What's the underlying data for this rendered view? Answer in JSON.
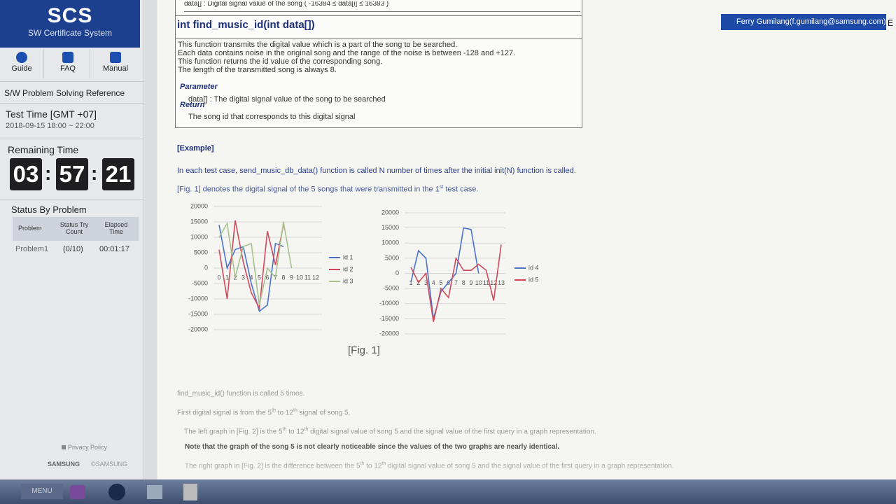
{
  "sidebar": {
    "logo": "SCS",
    "subtitle": "SW Certificate System",
    "nav": [
      "Guide",
      "FAQ",
      "Manual"
    ],
    "reference": "S/W Problem Solving Reference",
    "test_time_label": "Test Time [GMT +07]",
    "test_time": "2018-09-15 18:00 ~ 22:00",
    "remaining_label": "Remaining Time",
    "remaining": [
      "03",
      "57",
      "21"
    ],
    "remaining_sep": ":",
    "status_title": "Status By Problem",
    "status_headers": [
      "Problem",
      "Status Try Count",
      "Elapsed Time"
    ],
    "status_row": [
      "Problem1",
      "(0/10)",
      "00:01:17"
    ],
    "privacy": "Privacy Policy",
    "brand": "SAMSUNG",
    "brand_copy": "©SAMSUNG"
  },
  "user": "Ferry Gumilang(f.gumilang@samsung.com)",
  "user_button": "E",
  "taskbar": {
    "menu": "MENU"
  },
  "content": {
    "top_cut": "data[] : Digital signal value of the song ( -16384 ≤ data[i] ≤ 16383 )",
    "signature": "int find_music_id(int data[])",
    "description": [
      "This function transmits the digital value which is a part of the song to be searched.",
      "Each data contains noise in the original song and the range of the noise is between -128 and +127.",
      "This function returns the id value of the corresponding song.",
      "The length of the transmitted song is always 8."
    ],
    "parameter_label": "Parameter",
    "parameter": "data[] : The digital signal value of the song to be searched",
    "return_label": "Return",
    "return": "The song id that corresponds to this digital signal",
    "example": "[Example]",
    "p1": [
      "In each test case, send_music_db_data() function is called N number of times after the initial init(N) function is called."
    ],
    "p2": [
      "[Fig. 1] denotes the digital signal of the 5 songs that were transmitted in the 1",
      "st",
      " test case."
    ],
    "fig_caption": "[Fig. 1]",
    "p3": [
      "find_music_id() function is called 5 times."
    ],
    "p4": [
      "First digital signal is from the 5",
      "th",
      " to 12",
      "th",
      " signal of song 5."
    ],
    "p5": [
      "The left graph in [Fig. 2] is the 5",
      "th",
      " to 12",
      "th",
      " digital signal value of song 5 and the signal value of the first query in a graph representation."
    ],
    "p6": [
      "Note that the graph of the song 5 is not clearly noticeable since the values of the two graphs are nearly identical."
    ],
    "p7": [
      "The right graph in [Fig. 2] is the difference between the 5",
      "th",
      " to 12",
      "th",
      " digital signal value of song 5 and the signal value of the first query in a graph representation."
    ]
  },
  "chart_data": [
    {
      "type": "line",
      "categories": [
        "0",
        "1",
        "2",
        "3",
        "4",
        "5",
        "6",
        "7",
        "8",
        "9",
        "10",
        "11",
        "12"
      ],
      "series": [
        {
          "name": "id 1",
          "color": "#4a74c9",
          "values": [
            14000,
            0,
            6000,
            7000,
            -5000,
            -14000,
            -12000,
            8000,
            7000,
            null,
            null,
            null,
            null
          ]
        },
        {
          "name": "id 2",
          "color": "#d2485c",
          "values": [
            6000,
            -10000,
            15500,
            2000,
            -8000,
            -13000,
            12000,
            1000,
            14000,
            null,
            null,
            null,
            null
          ]
        },
        {
          "name": "id 3",
          "color": "#a8c28c",
          "values": [
            10000,
            14500,
            -3000,
            7000,
            8000,
            -12000,
            0,
            -3000,
            15000,
            0,
            null,
            null,
            null
          ]
        }
      ],
      "ylim": [
        -20000,
        20000
      ],
      "yticks": [
        -20000,
        -15000,
        -10000,
        -5000,
        0,
        5000,
        10000,
        15000,
        20000
      ],
      "grid": true,
      "legend": "right"
    },
    {
      "type": "line",
      "categories": [
        "1",
        "2",
        "3",
        "4",
        "5",
        "6",
        "7",
        "8",
        "9",
        "10",
        "11",
        "12",
        "13"
      ],
      "series": [
        {
          "name": "id 4",
          "color": "#4a74c9",
          "values": [
            -3000,
            7500,
            5000,
            -15000,
            -6000,
            -3000,
            0,
            15000,
            14500,
            0,
            null,
            null,
            null
          ]
        },
        {
          "name": "id 5",
          "color": "#d2485c",
          "values": [
            2000,
            -3000,
            0,
            -16000,
            -5000,
            -8000,
            5000,
            1000,
            1000,
            3000,
            1000,
            -9000,
            9500
          ]
        }
      ],
      "ylim": [
        -20000,
        20000
      ],
      "yticks": [
        -20000,
        -15000,
        -10000,
        -5000,
        0,
        5000,
        10000,
        15000,
        20000
      ],
      "grid": true,
      "legend": "right"
    }
  ]
}
